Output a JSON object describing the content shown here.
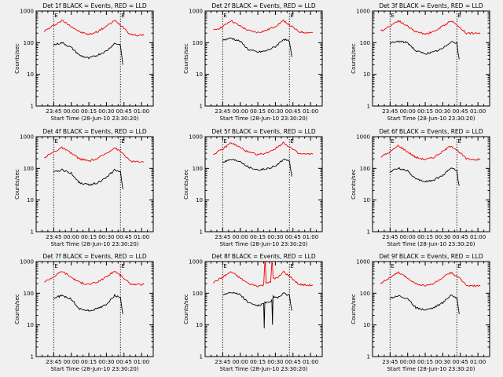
{
  "figure": {
    "background": "#f0f0f0",
    "event_color": "#000000",
    "lld_color": "#ee0000"
  },
  "chart_data": [
    {
      "type": "line",
      "title": "Det 1f BLACK = Events, RED = LLD",
      "xlabel": "Start Time (28-Jun-10 23:30:20)",
      "ylabel": "Counts/sec",
      "yscale": "log",
      "ylim": [
        1,
        1000
      ],
      "y_ticks": [
        "1",
        "10",
        "100",
        "1000"
      ],
      "x_ticks": [
        "23:45",
        "00:00",
        "00:15",
        "00:30",
        "00:45",
        "01:00"
      ],
      "x_tick_minutes": [
        15,
        30,
        45,
        60,
        75,
        90
      ],
      "xlim_minutes": [
        0,
        100
      ],
      "marker_label": "E",
      "vlines_minutes": [
        15,
        72
      ],
      "series": [
        {
          "name": "LLD",
          "color": "#ee0000",
          "x": [
            7,
            15,
            22,
            30,
            37,
            45,
            52,
            60,
            67,
            74,
            80,
            86,
            92
          ],
          "values": [
            230,
            350,
            500,
            330,
            220,
            180,
            220,
            330,
            500,
            320,
            190,
            170,
            170
          ]
        },
        {
          "name": "Events",
          "color": "#000000",
          "x": [
            15,
            22,
            30,
            37,
            45,
            52,
            60,
            67,
            72,
            73,
            74
          ],
          "values": [
            85,
            100,
            70,
            40,
            32,
            40,
            55,
            95,
            85,
            40,
            20
          ]
        }
      ]
    },
    {
      "type": "line",
      "title": "Det 2f BLACK = Events, RED = LLD",
      "xlabel": "Start Time (28-Jun-10 23:30:20)",
      "ylabel": "Counts/sec",
      "yscale": "log",
      "ylim": [
        1,
        1000
      ],
      "y_ticks": [
        "1",
        "10",
        "100",
        "1000"
      ],
      "x_ticks": [
        "23:45",
        "00:00",
        "00:15",
        "00:30",
        "00:45",
        "01:00"
      ],
      "x_tick_minutes": [
        15,
        30,
        45,
        60,
        75,
        90
      ],
      "xlim_minutes": [
        0,
        100
      ],
      "marker_label": "E",
      "vlines_minutes": [
        15,
        72
      ],
      "series": [
        {
          "name": "LLD",
          "color": "#ee0000",
          "x": [
            7,
            15,
            22,
            30,
            37,
            45,
            52,
            60,
            67,
            74,
            80,
            86,
            92
          ],
          "values": [
            240,
            320,
            500,
            330,
            240,
            210,
            240,
            330,
            500,
            320,
            220,
            210,
            210
          ]
        },
        {
          "name": "Events",
          "color": "#000000",
          "x": [
            15,
            22,
            30,
            37,
            45,
            52,
            60,
            67,
            72,
            73,
            74
          ],
          "values": [
            120,
            140,
            110,
            60,
            50,
            55,
            75,
            130,
            110,
            60,
            35
          ]
        }
      ]
    },
    {
      "type": "line",
      "title": "Det 3f BLACK = Events, RED = LLD",
      "xlabel": "Start Time (28-Jun-10 23:30:20)",
      "ylabel": "Counts/sec",
      "yscale": "log",
      "ylim": [
        1,
        1000
      ],
      "y_ticks": [
        "1",
        "10",
        "100",
        "1000"
      ],
      "x_ticks": [
        "23:45",
        "00:00",
        "00:15",
        "00:30",
        "00:45",
        "01:00"
      ],
      "x_tick_minutes": [
        15,
        30,
        45,
        60,
        75,
        90
      ],
      "xlim_minutes": [
        0,
        100
      ],
      "marker_label": "E",
      "vlines_minutes": [
        15,
        72
      ],
      "series": [
        {
          "name": "LLD",
          "color": "#ee0000",
          "x": [
            7,
            15,
            22,
            30,
            37,
            45,
            52,
            60,
            67,
            74,
            80,
            86,
            92
          ],
          "values": [
            230,
            340,
            500,
            330,
            220,
            190,
            220,
            330,
            500,
            320,
            200,
            200,
            190
          ]
        },
        {
          "name": "Events",
          "color": "#000000",
          "x": [
            15,
            22,
            30,
            37,
            45,
            52,
            60,
            67,
            72,
            73,
            74
          ],
          "values": [
            95,
            110,
            100,
            55,
            45,
            50,
            65,
            110,
            95,
            50,
            30
          ]
        }
      ]
    },
    {
      "type": "line",
      "title": "Det 4f BLACK = Events, RED = LLD",
      "xlabel": "Start Time (28-Jun-10 23:30:20)",
      "ylabel": "Counts/sec",
      "yscale": "log",
      "ylim": [
        1,
        1000
      ],
      "y_ticks": [
        "1",
        "10",
        "100",
        "1000"
      ],
      "x_ticks": [
        "23:45",
        "00:00",
        "00:15",
        "00:30",
        "00:45",
        "01:00"
      ],
      "x_tick_minutes": [
        15,
        30,
        45,
        60,
        75,
        90
      ],
      "xlim_minutes": [
        0,
        100
      ],
      "marker_label": "E",
      "vlines_minutes": [
        15,
        72
      ],
      "series": [
        {
          "name": "LLD",
          "color": "#ee0000",
          "x": [
            7,
            15,
            22,
            30,
            37,
            45,
            52,
            60,
            67,
            74,
            80,
            86,
            92
          ],
          "values": [
            220,
            330,
            450,
            300,
            200,
            170,
            200,
            300,
            450,
            300,
            170,
            160,
            160
          ]
        },
        {
          "name": "Events",
          "color": "#000000",
          "x": [
            15,
            22,
            30,
            37,
            45,
            52,
            60,
            67,
            72,
            73,
            74
          ],
          "values": [
            75,
            90,
            70,
            35,
            30,
            35,
            50,
            90,
            75,
            40,
            22
          ]
        }
      ]
    },
    {
      "type": "line",
      "title": "Det 5f BLACK = Events, RED = LLD",
      "xlabel": "Start Time (28-Jun-10 23:30:20)",
      "ylabel": "Counts/sec",
      "yscale": "log",
      "ylim": [
        1,
        1000
      ],
      "y_ticks": [
        "1",
        "10",
        "100",
        "1000"
      ],
      "x_ticks": [
        "23:45",
        "00:00",
        "00:15",
        "00:30",
        "00:45",
        "01:00"
      ],
      "x_tick_minutes": [
        15,
        30,
        45,
        60,
        75,
        90
      ],
      "xlim_minutes": [
        0,
        100
      ],
      "marker_label": "E",
      "vlines_minutes": [
        15,
        72
      ],
      "series": [
        {
          "name": "LLD",
          "color": "#ee0000",
          "x": [
            7,
            15,
            22,
            30,
            37,
            45,
            52,
            60,
            67,
            74,
            80,
            86,
            92
          ],
          "values": [
            280,
            400,
            650,
            450,
            320,
            270,
            300,
            420,
            650,
            420,
            290,
            280,
            280
          ]
        },
        {
          "name": "Events",
          "color": "#000000",
          "x": [
            15,
            22,
            30,
            37,
            45,
            52,
            60,
            67,
            72,
            73,
            74
          ],
          "values": [
            160,
            190,
            170,
            110,
            90,
            95,
            120,
            190,
            160,
            90,
            55
          ]
        }
      ]
    },
    {
      "type": "line",
      "title": "Det 6f BLACK = Events, RED = LLD",
      "xlabel": "Start Time (28-Jun-10 23:30:20)",
      "ylabel": "Counts/sec",
      "yscale": "log",
      "ylim": [
        1,
        1000
      ],
      "y_ticks": [
        "1",
        "10",
        "100",
        "1000"
      ],
      "x_ticks": [
        "23:45",
        "00:00",
        "00:15",
        "00:30",
        "00:45",
        "01:00"
      ],
      "x_tick_minutes": [
        15,
        30,
        45,
        60,
        75,
        90
      ],
      "xlim_minutes": [
        0,
        100
      ],
      "marker_label": "E",
      "vlines_minutes": [
        15,
        72
      ],
      "series": [
        {
          "name": "LLD",
          "color": "#ee0000",
          "x": [
            7,
            15,
            22,
            30,
            37,
            45,
            52,
            60,
            67,
            74,
            80,
            86,
            92
          ],
          "values": [
            230,
            330,
            520,
            330,
            220,
            190,
            220,
            340,
            520,
            330,
            200,
            190,
            190
          ]
        },
        {
          "name": "Events",
          "color": "#000000",
          "x": [
            15,
            22,
            30,
            37,
            45,
            52,
            60,
            67,
            72,
            73,
            74
          ],
          "values": [
            80,
            100,
            85,
            45,
            38,
            42,
            60,
            105,
            85,
            45,
            28
          ]
        }
      ]
    },
    {
      "type": "line",
      "title": "Det 7f BLACK = Events, RED = LLD",
      "xlabel": "Start Time (28-Jun-10 23:30:20)",
      "ylabel": "Counts/sec",
      "yscale": "log",
      "ylim": [
        1,
        1000
      ],
      "y_ticks": [
        "1",
        "10",
        "100",
        "1000"
      ],
      "x_ticks": [
        "23:45",
        "00:00",
        "00:15",
        "00:30",
        "00:45",
        "01:00"
      ],
      "x_tick_minutes": [
        15,
        30,
        45,
        60,
        75,
        90
      ],
      "xlim_minutes": [
        0,
        100
      ],
      "marker_label": "E",
      "vlines_minutes": [
        15,
        72
      ],
      "series": [
        {
          "name": "LLD",
          "color": "#ee0000",
          "x": [
            7,
            15,
            22,
            30,
            37,
            45,
            52,
            60,
            67,
            74,
            80,
            86,
            92
          ],
          "values": [
            230,
            330,
            500,
            320,
            220,
            190,
            220,
            330,
            500,
            320,
            200,
            190,
            190
          ]
        },
        {
          "name": "Events",
          "color": "#000000",
          "x": [
            15,
            22,
            30,
            37,
            45,
            52,
            60,
            67,
            72,
            73,
            74
          ],
          "values": [
            70,
            85,
            65,
            32,
            28,
            32,
            45,
            85,
            70,
            38,
            22
          ]
        }
      ]
    },
    {
      "type": "line",
      "title": "Det 8f BLACK = Events, RED = LLD",
      "xlabel": "Start Time (28-Jun-10 23:30:20)",
      "ylabel": "Counts/sec",
      "yscale": "log",
      "ylim": [
        1,
        1000
      ],
      "y_ticks": [
        "1",
        "10",
        "100",
        "1000"
      ],
      "x_ticks": [
        "23:45",
        "00:00",
        "00:15",
        "00:30",
        "00:45",
        "01:00"
      ],
      "x_tick_minutes": [
        15,
        30,
        45,
        60,
        75,
        90
      ],
      "xlim_minutes": [
        0,
        100
      ],
      "marker_label": "E",
      "vlines_minutes": [
        15,
        72
      ],
      "series": [
        {
          "name": "LLD",
          "color": "#ee0000",
          "x": [
            7,
            15,
            22,
            30,
            37,
            45,
            50,
            51,
            51.5,
            52,
            56,
            57,
            57.5,
            58,
            62,
            67,
            74,
            80,
            86,
            92
          ],
          "values": [
            220,
            320,
            480,
            300,
            200,
            170,
            180,
            1000,
            1000,
            220,
            220,
            900,
            900,
            300,
            300,
            480,
            300,
            190,
            180,
            180
          ]
        },
        {
          "name": "Events",
          "color": "#000000",
          "x": [
            15,
            22,
            30,
            37,
            45,
            49,
            50,
            50.5,
            51,
            56,
            57,
            57.5,
            58,
            62,
            67,
            72,
            73,
            74
          ],
          "values": [
            90,
            110,
            90,
            50,
            40,
            45,
            50,
            8,
            50,
            50,
            60,
            10,
            80,
            70,
            100,
            85,
            45,
            28
          ]
        }
      ]
    },
    {
      "type": "line",
      "title": "Det 9f BLACK = Events, RED = LLD",
      "xlabel": "Start Time (28-Jun-10 23:30:20)",
      "ylabel": "Counts/sec",
      "yscale": "log",
      "ylim": [
        1,
        1000
      ],
      "y_ticks": [
        "1",
        "10",
        "100",
        "1000"
      ],
      "x_ticks": [
        "23:45",
        "00:00",
        "00:15",
        "00:30",
        "00:45",
        "01:00"
      ],
      "x_tick_minutes": [
        15,
        30,
        45,
        60,
        75,
        90
      ],
      "xlim_minutes": [
        0,
        100
      ],
      "marker_label": "E",
      "vlines_minutes": [
        15,
        72
      ],
      "series": [
        {
          "name": "LLD",
          "color": "#ee0000",
          "x": [
            7,
            15,
            22,
            30,
            37,
            45,
            52,
            60,
            67,
            74,
            80,
            86,
            92
          ],
          "values": [
            210,
            310,
            450,
            300,
            200,
            170,
            200,
            310,
            450,
            300,
            180,
            170,
            170
          ]
        },
        {
          "name": "Events",
          "color": "#000000",
          "x": [
            15,
            22,
            30,
            37,
            45,
            52,
            60,
            67,
            72,
            73,
            74
          ],
          "values": [
            70,
            85,
            65,
            35,
            30,
            35,
            50,
            90,
            70,
            38,
            22
          ]
        }
      ]
    }
  ]
}
